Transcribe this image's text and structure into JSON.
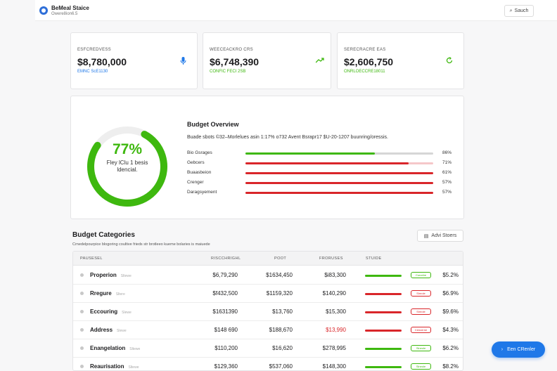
{
  "header": {
    "title": "BeMeal Staice",
    "subtitle": "Owere8ion6.5",
    "search_label": "Sauch"
  },
  "colors": {
    "green": "#3eb80f",
    "red": "#d9262a",
    "blue": "#1f78e8",
    "track": "#e0e0e0"
  },
  "stats": [
    {
      "label": "ESFCREDVESS",
      "value": "$8,780,000",
      "delta": "EMNC ScE1130",
      "color": "#1f78e8",
      "icon": "microphone-icon",
      "icon_glyph": "🎙"
    },
    {
      "label": "WEECEACKRO CRS",
      "value": "$6,748,390",
      "delta": "CONFIC FECI 2SB",
      "color": "#3eb80f",
      "icon": "trend-up-icon",
      "icon_glyph": "↗"
    },
    {
      "label": "SERECRACRE EAS",
      "value": "$2,606,750",
      "delta": "ONRLOECCRE18011",
      "color": "#3eb80f",
      "icon": "refresh-icon",
      "icon_glyph": "↻"
    }
  ],
  "overview": {
    "percent_text": "77%",
    "percent": 0.77,
    "label_line1": "Fley lClu 1 besis",
    "label_line2": "ldencial.",
    "title": "Budget Overview",
    "description": "Buade sbots ©32–Morlelues asin 1:17% o732 Avent Bsrapr17 $U-20-1207 buunring/oressis.",
    "rows": [
      {
        "name": "Bio Gsrages",
        "pct": "86%",
        "fill": 0.69,
        "color": "#3eb80f",
        "track": "#d6d6d6"
      },
      {
        "name": "Gebcers",
        "pct": "71%",
        "fill": 0.87,
        "color": "#d9262a",
        "track": "#f5c7c9"
      },
      {
        "name": "Buaasbeion",
        "pct": "61%",
        "fill": 1.0,
        "color": "#d9262a",
        "track": "#e0e0e0"
      },
      {
        "name": "Crenger",
        "pct": "57%",
        "fill": 1.0,
        "color": "#d9262a",
        "track": "#e0e0e0"
      },
      {
        "name": "Daragsyement",
        "pct": "57%",
        "fill": 1.0,
        "color": "#d9262a",
        "track": "#e0e0e0"
      }
    ]
  },
  "categories": {
    "title": "Budget Categories",
    "subtitle": "Crnedelpourpice blogoring coultive frieds str brotleeo kueme bolaries is maiuede",
    "button_label": "Advi Stoers",
    "columns": [
      "PAUSESEL",
      "RISCCHRIGHL",
      "POOT",
      "FRORUSES",
      "STUIDE"
    ],
    "rows": [
      {
        "name": "Properion",
        "tag": "Sltewe",
        "c1": "$6,79,290",
        "c2": "$1634,450",
        "c3": "$i83,300",
        "c3_red": false,
        "bar": "#3eb80f",
        "badge": "Curcebe",
        "badge_color": "#3eb80f",
        "pct": "$5.2%"
      },
      {
        "name": "Rregure",
        "tag": "Sltere",
        "c1": "$f432,500",
        "c2": "$1159,320",
        "c3": "$140,290",
        "c3_red": false,
        "bar": "#d9262a",
        "badge": "Sinrole",
        "badge_color": "#d9262a",
        "pct": "$6.9%"
      },
      {
        "name": "Eccouring",
        "tag": "Slewe",
        "c1": "$1631390",
        "c2": "$13,760",
        "c3": "$15,300",
        "c3_red": false,
        "bar": "#d9262a",
        "badge": "Sinrole",
        "badge_color": "#d9262a",
        "pct": "$9.6%"
      },
      {
        "name": "Address",
        "tag": "Slewe",
        "c1": "$148 690",
        "c2": "$188,670",
        "c3": "$13,990",
        "c3_red": true,
        "bar": "#d9262a",
        "badge": "Cencerne",
        "badge_color": "#d9262a",
        "pct": "$4.3%"
      },
      {
        "name": "Enangelation",
        "tag": "Sltewe",
        "c1": "$110,200",
        "c2": "$16,620",
        "c3": "$278,995",
        "c3_red": false,
        "bar": "#3eb80f",
        "badge": "Slneole",
        "badge_color": "#3eb80f",
        "pct": "$6.2%"
      },
      {
        "name": "Reaurisation",
        "tag": "Sltewe",
        "c1": "$129,360",
        "c2": "$537,060",
        "c3": "$148,300",
        "c3_red": false,
        "bar": "#3eb80f",
        "badge": "Slneole",
        "badge_color": "#3eb80f",
        "pct": "$8.2%"
      }
    ]
  },
  "fab": {
    "label": "Een CRenler"
  }
}
